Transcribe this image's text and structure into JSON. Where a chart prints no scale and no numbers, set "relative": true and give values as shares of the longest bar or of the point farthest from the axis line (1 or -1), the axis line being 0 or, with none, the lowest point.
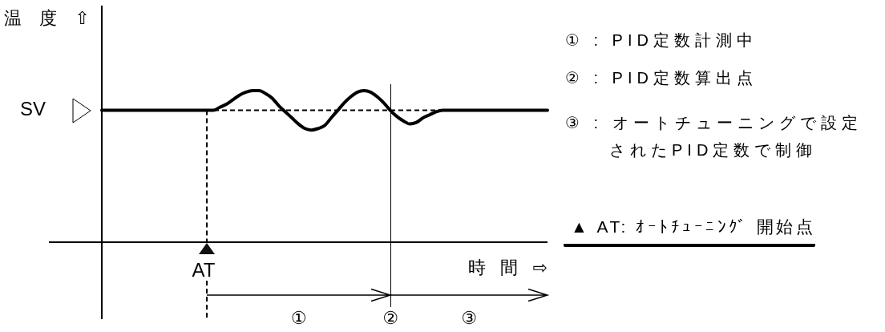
{
  "chart_data": {
    "type": "line",
    "ylabel": "温 度 ⇧",
    "xlabel": "時 間 ⇨",
    "categories": [
      null,
      null,
      null,
      null,
      null,
      null,
      null,
      null,
      null,
      null,
      null,
      null,
      null,
      null,
      null,
      null,
      null,
      null,
      null,
      null,
      null,
      null,
      null,
      null,
      null,
      null,
      null,
      null,
      null,
      null,
      null,
      null,
      null,
      null,
      null,
      null,
      null,
      null,
      null,
      null,
      null,
      null,
      null,
      null,
      null,
      null,
      null,
      null,
      null,
      null,
      null,
      null,
      null,
      null,
      null,
      null,
      null,
      null,
      null,
      null,
      null,
      null,
      null,
      null,
      null,
      null,
      null,
      null,
      null
    ],
    "values": [
      0.87,
      0.87,
      0.87,
      0.87,
      0.87,
      0.87,
      0.87,
      0.87,
      0.87,
      0.87,
      0.87,
      0.87,
      0.87,
      0.87,
      0.87,
      0.87,
      0.87,
      0.87,
      0.89,
      0.91,
      0.94,
      0.97,
      0.99,
      1,
      1,
      0.98,
      0.95,
      0.9,
      0.86,
      0.82,
      0.78,
      0.75,
      0.74,
      0.75,
      0.77,
      0.82,
      0.87,
      0.92,
      0.96,
      0.99,
      1,
      0.99,
      0.96,
      0.92,
      0.87,
      0.83,
      0.8,
      0.78,
      0.79,
      0.82,
      0.84,
      0.86,
      0.87,
      0.87,
      0.87,
      0.87,
      0.87,
      0.87,
      0.87,
      0.87,
      0.87,
      0.87,
      0.87,
      0.87,
      0.87,
      0.87,
      0.87,
      0.87,
      0.87
    ],
    "color": "#000000",
    "relative": true,
    "ref_lines": [
      {
        "axis": "y",
        "value": 0.87,
        "label": "SV",
        "line_style": "dashed"
      }
    ],
    "annotations": [
      "① : PID定数計測中",
      "② : PID定数算出点",
      "③ : オートチューニングで設定されたPID定数で制御",
      "▲ AT: ｵｰﾄﾁｭｰﾆﾝｸﾞ 開始点",
      "AT",
      "①",
      "②",
      "③"
    ]
  }
}
